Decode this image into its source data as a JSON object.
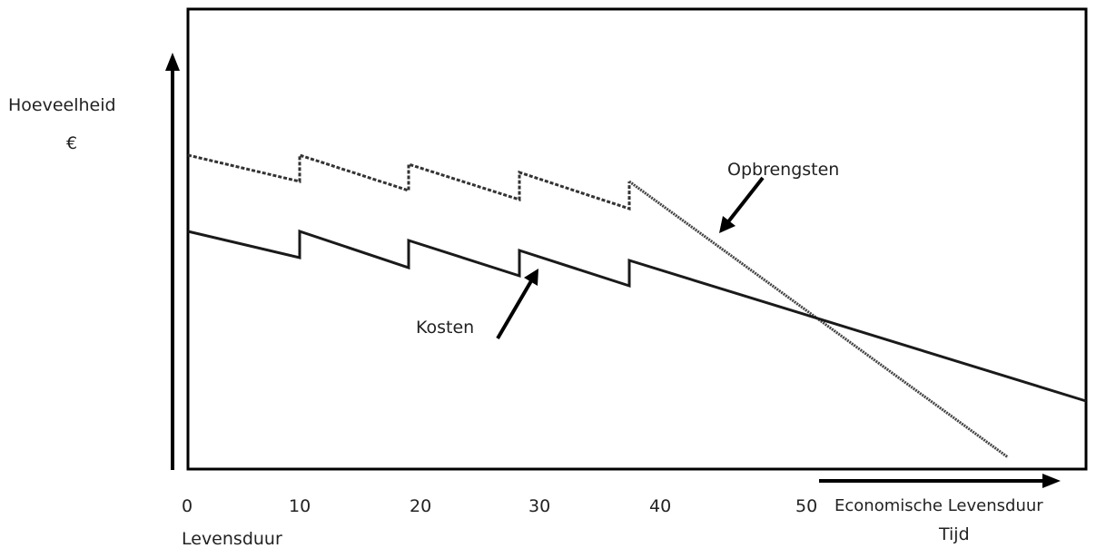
{
  "labels": {
    "y_axis_title": "Hoeveelheid",
    "y_axis_unit": "€",
    "x_axis_sub": "Levensduur",
    "x_axis_time": "Tijd",
    "economic_life": "Economische Levensduur",
    "revenues": "Opbrengsten",
    "costs": "Kosten"
  },
  "x_ticks": [
    "0",
    "10",
    "20",
    "30",
    "40",
    "50"
  ],
  "colors": {
    "line": "#1a1a1a",
    "revenue_line": "#333333",
    "frame": "#000000"
  }
}
